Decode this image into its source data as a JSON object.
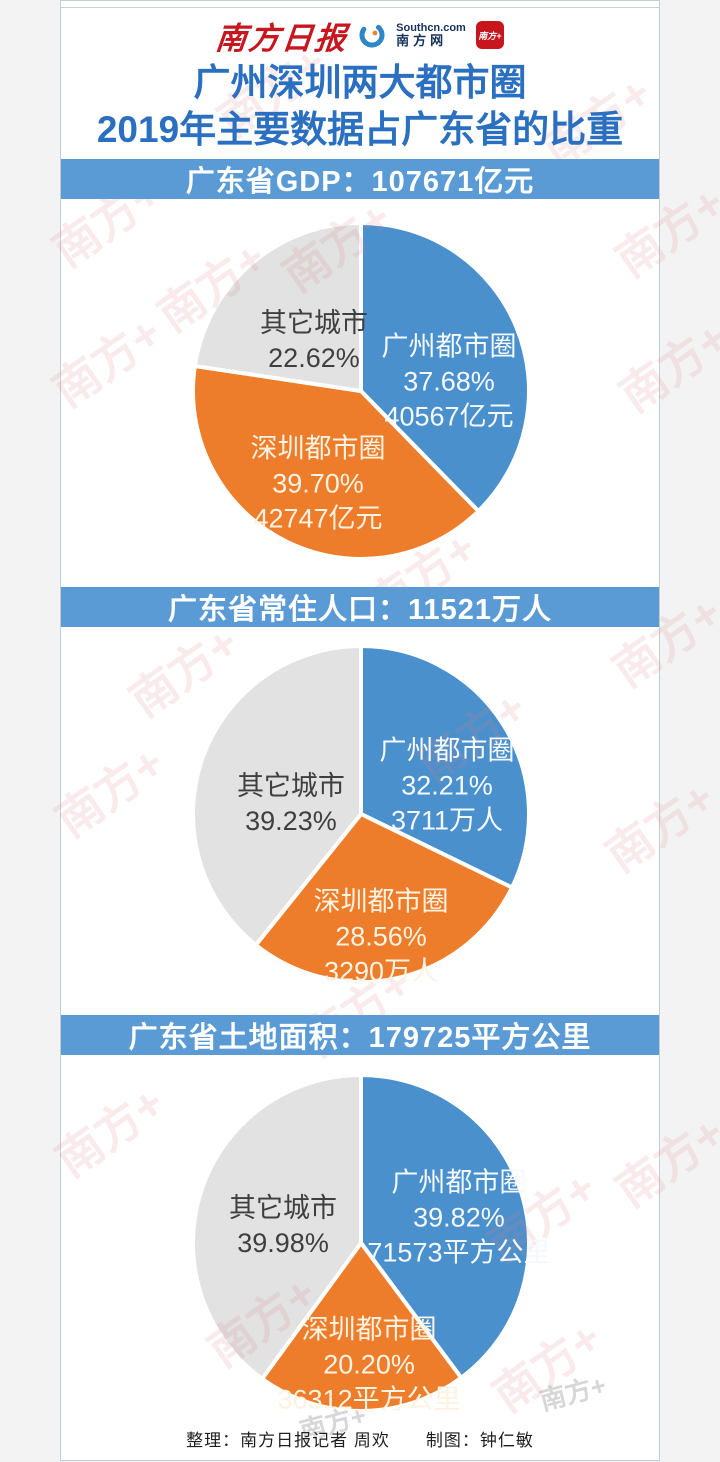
{
  "header": {
    "paper_logo": "南方日报",
    "portal_logo_top": "Southcn.com",
    "portal_logo_bottom": "南方网",
    "app_badge": "南方+"
  },
  "title": {
    "line1": "广州深圳两大都市圈",
    "line2": "2019年主要数据占广东省的比重"
  },
  "footer": {
    "credit": "整理：南方日报记者 周欢　　制图：钟仁敏"
  },
  "watermark_text": "南方+",
  "colors": {
    "banner_bg": "#5b9bd5",
    "title_text": "#2a6fc0",
    "guangzhou_blue": "#4a90cd",
    "shenzhen_orange": "#ed7d2b",
    "other_gray": "#e2e2e2",
    "logo_red": "#c7161e",
    "portal_navy": "#16325c"
  },
  "chart_data": [
    {
      "type": "pie",
      "title": "广东省GDP：107671亿元",
      "total_value": 107671,
      "unit": "亿元",
      "legend_position": "in-slice",
      "slices": [
        {
          "label": "广州都市圈",
          "pct": 37.68,
          "pct_text": "37.68%",
          "value": 40567,
          "value_text": "40567亿元",
          "color": "#4a90cd",
          "text_color": "#f5f9fd",
          "label_pos": [
            0.524,
            -0.054
          ]
        },
        {
          "label": "深圳都市圈",
          "pct": 39.7,
          "pct_text": "39.70%",
          "value": 42747,
          "value_text": "42747亿元",
          "color": "#ed7d2b",
          "text_color": "#fdf3e3",
          "label_pos": [
            -0.256,
            0.554
          ]
        },
        {
          "label": "其它城市",
          "pct": 22.62,
          "pct_text": "22.62%",
          "value": null,
          "value_text": "",
          "color": "#e2e2e2",
          "text_color": "#3f3f3f",
          "label_pos": [
            -0.28,
            -0.298
          ]
        }
      ]
    },
    {
      "type": "pie",
      "title": "广东省常住人口：11521万人",
      "total_value": 11521,
      "unit": "万人",
      "legend_position": "in-slice",
      "slices": [
        {
          "label": "广州都市圈",
          "pct": 32.21,
          "pct_text": "32.21%",
          "value": 3711,
          "value_text": "3711万人",
          "color": "#4a90cd",
          "text_color": "#f5f9fd",
          "label_pos": [
            0.512,
            -0.167
          ]
        },
        {
          "label": "深圳都市圈",
          "pct": 28.56,
          "pct_text": "28.56%",
          "value": 3290,
          "value_text": "3290万人",
          "color": "#ed7d2b",
          "text_color": "#fdf3e3",
          "label_pos": [
            0.119,
            0.732
          ]
        },
        {
          "label": "其它城市",
          "pct": 39.23,
          "pct_text": "39.23%",
          "value": null,
          "value_text": "",
          "color": "#e2e2e2",
          "text_color": "#3f3f3f",
          "label_pos": [
            -0.417,
            -0.06
          ]
        }
      ]
    },
    {
      "type": "pie",
      "title": "广东省土地面积：179725平方公里",
      "total_value": 179725,
      "unit": "平方公里",
      "legend_position": "in-slice",
      "slices": [
        {
          "label": "广州都市圈",
          "pct": 39.82,
          "pct_text": "39.82%",
          "value": 71573,
          "value_text": "71573平方公里",
          "color": "#4a90cd",
          "text_color": "#f5f9fd",
          "label_pos": [
            0.583,
            -0.149
          ]
        },
        {
          "label": "深圳都市圈",
          "pct": 20.2,
          "pct_text": "20.20%",
          "value": 36312,
          "value_text": "36312平方公里",
          "color": "#ed7d2b",
          "text_color": "#fdf3e3",
          "label_pos": [
            0.048,
            0.726
          ]
        },
        {
          "label": "其它城市",
          "pct": 39.98,
          "pct_text": "39.98%",
          "value": null,
          "value_text": "",
          "color": "#e2e2e2",
          "text_color": "#3f3f3f",
          "label_pos": [
            -0.464,
            -0.101
          ]
        }
      ]
    }
  ]
}
